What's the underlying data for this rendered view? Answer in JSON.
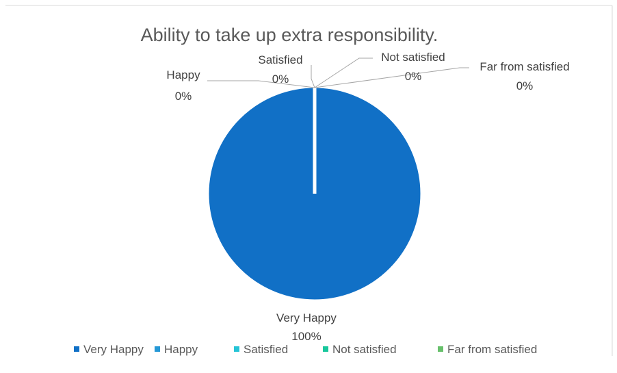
{
  "chart_data": {
    "type": "pie",
    "title": "Ability to take up extra responsibility.",
    "categories": [
      "Very Happy",
      "Happy",
      "Satisfied",
      "Not satisfied",
      "Far from satisfied"
    ],
    "values": [
      1,
      0,
      0,
      0,
      0
    ],
    "data_labels": [
      {
        "name": "Very Happy",
        "percent": "100%"
      },
      {
        "name": "Happy",
        "percent": "0%"
      },
      {
        "name": "Satisfied",
        "percent": "0%"
      },
      {
        "name": "Not satisfied",
        "percent": "0%"
      },
      {
        "name": "Far from satisfied",
        "percent": "0%"
      }
    ],
    "colors": [
      "#1170c6",
      "#2598d6",
      "#25c4d6",
      "#18c79c",
      "#67c06b"
    ],
    "legend_position": "bottom"
  }
}
